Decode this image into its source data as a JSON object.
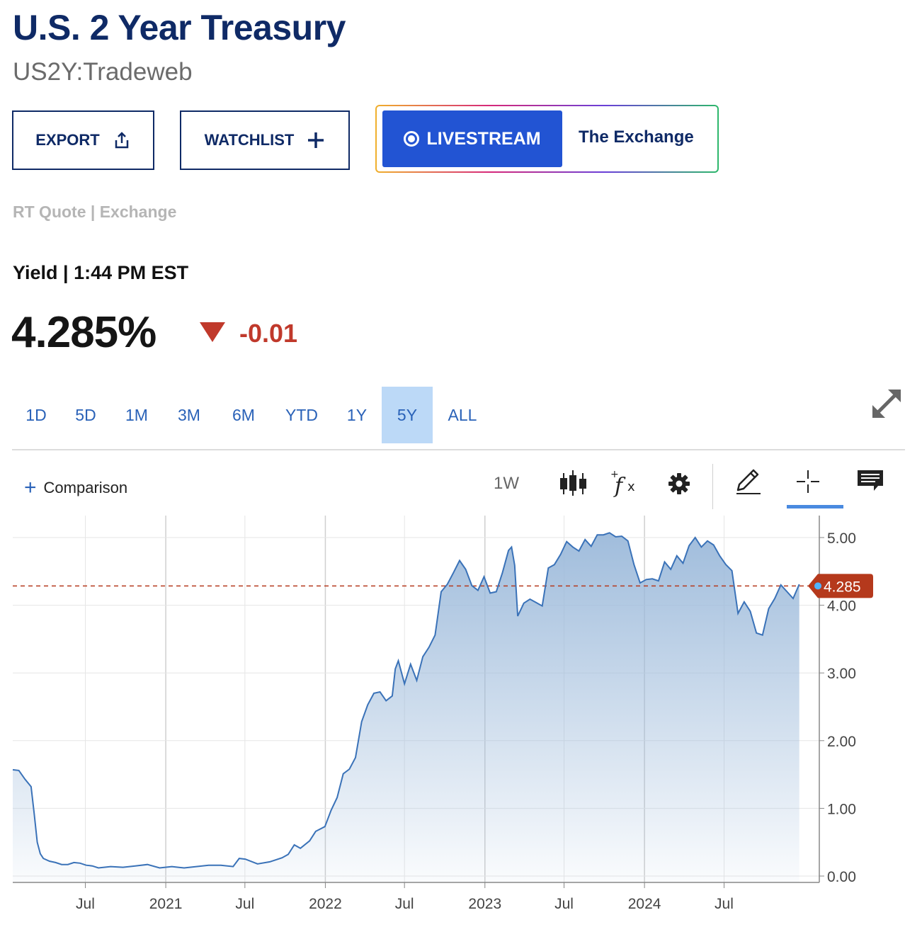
{
  "header": {
    "title": "U.S. 2 Year Treasury",
    "symbol": "US2Y:Tradeweb"
  },
  "actions": {
    "export_label": "EXPORT",
    "watchlist_label": "WATCHLIST",
    "livestream_label": "LIVESTREAM",
    "livestream_show": "The Exchange"
  },
  "quote": {
    "source": "RT Quote | Exchange",
    "yield_label": "Yield | 1:44 PM EST",
    "price": "4.285%",
    "change": "-0.01",
    "change_direction": "down",
    "down_color": "#c0392b"
  },
  "ranges": {
    "items": [
      "1D",
      "5D",
      "1M",
      "3M",
      "6M",
      "YTD",
      "1Y",
      "5Y",
      "ALL"
    ],
    "active": "5Y"
  },
  "toolbar": {
    "comparison_label": "Comparison",
    "interval": "1W",
    "icons": [
      "candlestick-icon",
      "indicator-fx-icon",
      "settings-gear-icon",
      "pencil-draw-icon",
      "crosshair-icon",
      "comment-icon"
    ],
    "active_tool": "crosshair-icon"
  },
  "chart_data": {
    "type": "area",
    "title": "",
    "xlabel": "",
    "ylabel": "",
    "ylim": [
      0,
      5.2
    ],
    "y_ticks": [
      "0.00",
      "1.00",
      "2.00",
      "3.00",
      "4.00",
      "5.00"
    ],
    "x_ticks": [
      {
        "label": "Jul",
        "date": "2020-07-01"
      },
      {
        "label": "2021",
        "date": "2021-01-01"
      },
      {
        "label": "Jul",
        "date": "2021-07-01"
      },
      {
        "label": "2022",
        "date": "2022-01-01"
      },
      {
        "label": "Jul",
        "date": "2022-07-01"
      },
      {
        "label": "2023",
        "date": "2023-01-01"
      },
      {
        "label": "Jul",
        "date": "2023-07-01"
      },
      {
        "label": "2024",
        "date": "2024-01-01"
      },
      {
        "label": "Jul",
        "date": "2024-07-01"
      }
    ],
    "current_value": 4.285,
    "current_label": "4.285",
    "line_color": "#3a72b8",
    "marker_color": "#b5391c",
    "grid": true,
    "series": [
      {
        "x": [
          "2020-01-17",
          "2020-01-31",
          "2020-02-14",
          "2020-02-28",
          "2020-03-06",
          "2020-03-13",
          "2020-03-20",
          "2020-03-27",
          "2020-04-10",
          "2020-04-24",
          "2020-05-08",
          "2020-05-22",
          "2020-06-05",
          "2020-06-19",
          "2020-07-03",
          "2020-07-17",
          "2020-07-31",
          "2020-08-28",
          "2020-09-25",
          "2020-10-23",
          "2020-11-20",
          "2020-12-18",
          "2021-01-15",
          "2021-02-12",
          "2021-03-12",
          "2021-04-09",
          "2021-05-07",
          "2021-06-04",
          "2021-06-18",
          "2021-07-02",
          "2021-07-30",
          "2021-08-27",
          "2021-09-24",
          "2021-10-08",
          "2021-10-22",
          "2021-11-05",
          "2021-11-26",
          "2021-12-10",
          "2021-12-31",
          "2022-01-14",
          "2022-01-28",
          "2022-02-11",
          "2022-02-25",
          "2022-03-11",
          "2022-03-25",
          "2022-04-08",
          "2022-04-22",
          "2022-05-06",
          "2022-05-20",
          "2022-06-03",
          "2022-06-10",
          "2022-06-17",
          "2022-07-01",
          "2022-07-15",
          "2022-07-29",
          "2022-08-12",
          "2022-08-26",
          "2022-09-09",
          "2022-09-23",
          "2022-10-07",
          "2022-10-21",
          "2022-11-04",
          "2022-11-18",
          "2022-12-02",
          "2022-12-16",
          "2022-12-30",
          "2023-01-13",
          "2023-01-27",
          "2023-02-10",
          "2023-02-24",
          "2023-03-03",
          "2023-03-10",
          "2023-03-17",
          "2023-03-31",
          "2023-04-14",
          "2023-04-28",
          "2023-05-12",
          "2023-05-26",
          "2023-06-09",
          "2023-06-23",
          "2023-07-07",
          "2023-07-21",
          "2023-08-04",
          "2023-08-18",
          "2023-09-01",
          "2023-09-15",
          "2023-09-29",
          "2023-10-13",
          "2023-10-27",
          "2023-11-10",
          "2023-11-24",
          "2023-12-08",
          "2023-12-22",
          "2024-01-05",
          "2024-01-19",
          "2024-02-02",
          "2024-02-16",
          "2024-03-01",
          "2024-03-15",
          "2024-03-29",
          "2024-04-12",
          "2024-04-26",
          "2024-05-10",
          "2024-05-24",
          "2024-06-07",
          "2024-06-21",
          "2024-07-05",
          "2024-07-19",
          "2024-08-02",
          "2024-08-16",
          "2024-08-30",
          "2024-09-13",
          "2024-09-27",
          "2024-10-11",
          "2024-10-25",
          "2024-11-08",
          "2024-11-22",
          "2024-12-06",
          "2024-12-20"
        ],
        "values": [
          1.57,
          1.56,
          1.43,
          1.32,
          0.92,
          0.5,
          0.33,
          0.26,
          0.22,
          0.2,
          0.17,
          0.17,
          0.2,
          0.19,
          0.16,
          0.15,
          0.12,
          0.14,
          0.13,
          0.15,
          0.17,
          0.12,
          0.14,
          0.12,
          0.14,
          0.16,
          0.16,
          0.14,
          0.26,
          0.25,
          0.18,
          0.21,
          0.27,
          0.32,
          0.46,
          0.41,
          0.52,
          0.66,
          0.73,
          0.97,
          1.16,
          1.51,
          1.58,
          1.75,
          2.28,
          2.53,
          2.7,
          2.72,
          2.59,
          2.66,
          3.06,
          3.18,
          2.84,
          3.13,
          2.89,
          3.24,
          3.38,
          3.56,
          4.2,
          4.31,
          4.48,
          4.66,
          4.53,
          4.29,
          4.22,
          4.42,
          4.18,
          4.2,
          4.48,
          4.81,
          4.86,
          4.59,
          3.84,
          4.03,
          4.09,
          4.04,
          3.99,
          4.55,
          4.6,
          4.75,
          4.94,
          4.86,
          4.8,
          4.97,
          4.87,
          5.04,
          5.04,
          5.07,
          5.01,
          5.02,
          4.95,
          4.6,
          4.33,
          4.38,
          4.39,
          4.36,
          4.64,
          4.53,
          4.73,
          4.62,
          4.88,
          5.0,
          4.86,
          4.95,
          4.89,
          4.73,
          4.6,
          4.51,
          3.88,
          4.05,
          3.91,
          3.59,
          3.56,
          3.95,
          4.1,
          4.3,
          4.2,
          4.1,
          4.31
        ]
      }
    ]
  }
}
